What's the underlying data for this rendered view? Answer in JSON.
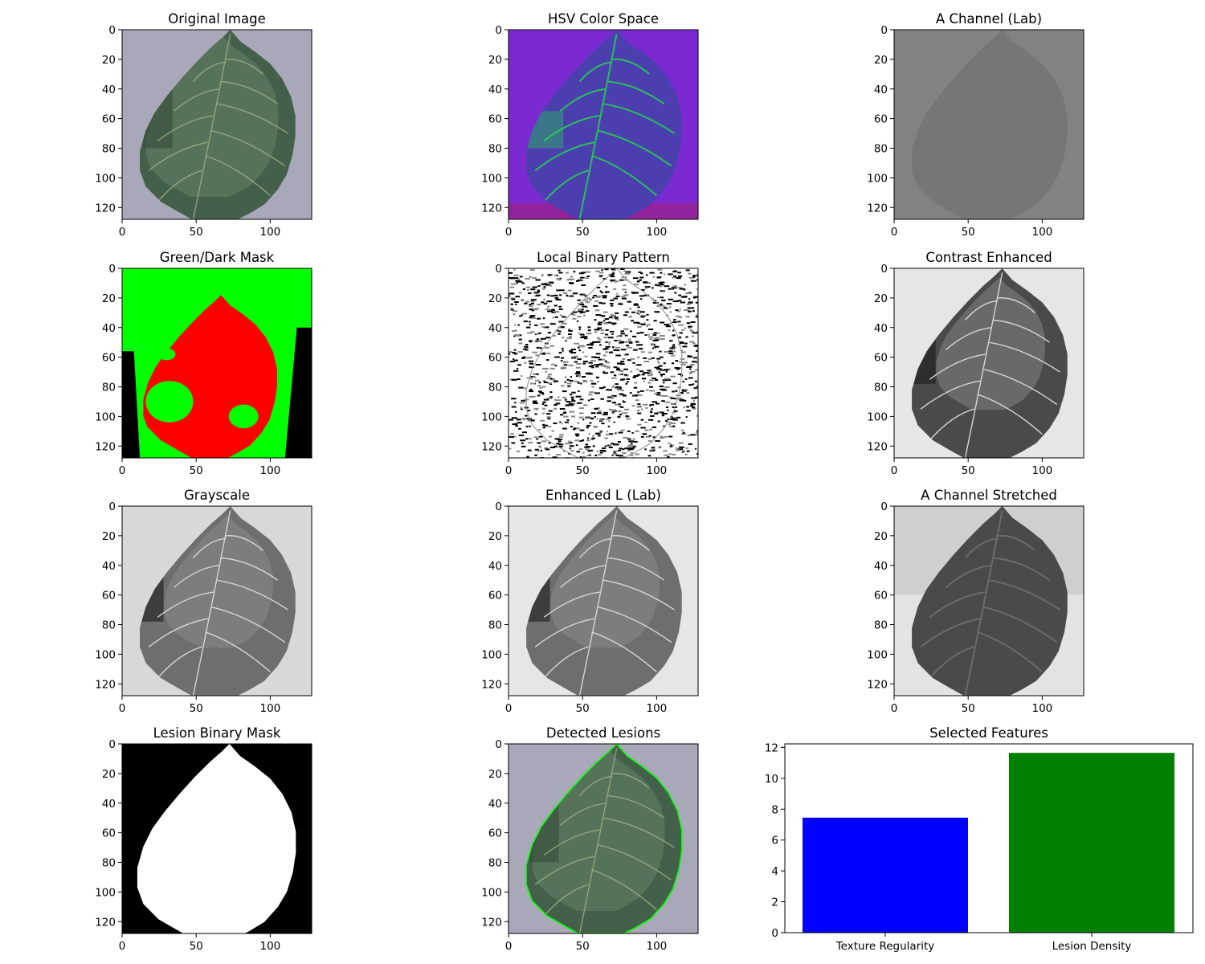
{
  "figure": {
    "panels": [
      {
        "id": "original",
        "title": "Original Image",
        "kind": "original"
      },
      {
        "id": "hsv",
        "title": "HSV Color Space",
        "kind": "hsv"
      },
      {
        "id": "achannel",
        "title": "A Channel (Lab)",
        "kind": "achannel"
      },
      {
        "id": "greenmask",
        "title": "Green/Dark Mask",
        "kind": "greenmask"
      },
      {
        "id": "lbp",
        "title": "Local Binary Pattern",
        "kind": "lbp"
      },
      {
        "id": "contrast",
        "title": "Contrast Enhanced",
        "kind": "contrast"
      },
      {
        "id": "grayscale",
        "title": "Grayscale",
        "kind": "grayscale"
      },
      {
        "id": "enhancedl",
        "title": "Enhanced L (Lab)",
        "kind": "enhancedl"
      },
      {
        "id": "astretched",
        "title": "A Channel Stretched",
        "kind": "astretched"
      },
      {
        "id": "lesionmask",
        "title": "Lesion Binary Mask",
        "kind": "lesionmask"
      },
      {
        "id": "detected",
        "title": "Detected Lesions",
        "kind": "detected"
      }
    ],
    "image_axes": {
      "x_ticks": [
        0,
        50,
        100
      ],
      "y_ticks": [
        0,
        20,
        40,
        60,
        80,
        100,
        120
      ],
      "extent": [
        0,
        128
      ]
    }
  },
  "chart_data": {
    "type": "bar",
    "title": "Selected Features",
    "categories": [
      "Texture Regularity",
      "Lesion Density"
    ],
    "values": [
      7.45,
      11.65
    ],
    "colors": [
      "#0000ff",
      "#008000"
    ],
    "ylim": [
      0,
      12.23
    ],
    "y_ticks": [
      0,
      2,
      4,
      6,
      8,
      10,
      12
    ],
    "xlabel": "",
    "ylabel": ""
  },
  "colors": {
    "leaf_dark": "#45604a",
    "leaf_light": "#6b8a6d",
    "background": "#a9a8b8",
    "hsv_purple": "#7a2ad0",
    "mask_green": "#00ff00",
    "mask_red": "#ff0000",
    "contour": "#00ff00"
  }
}
